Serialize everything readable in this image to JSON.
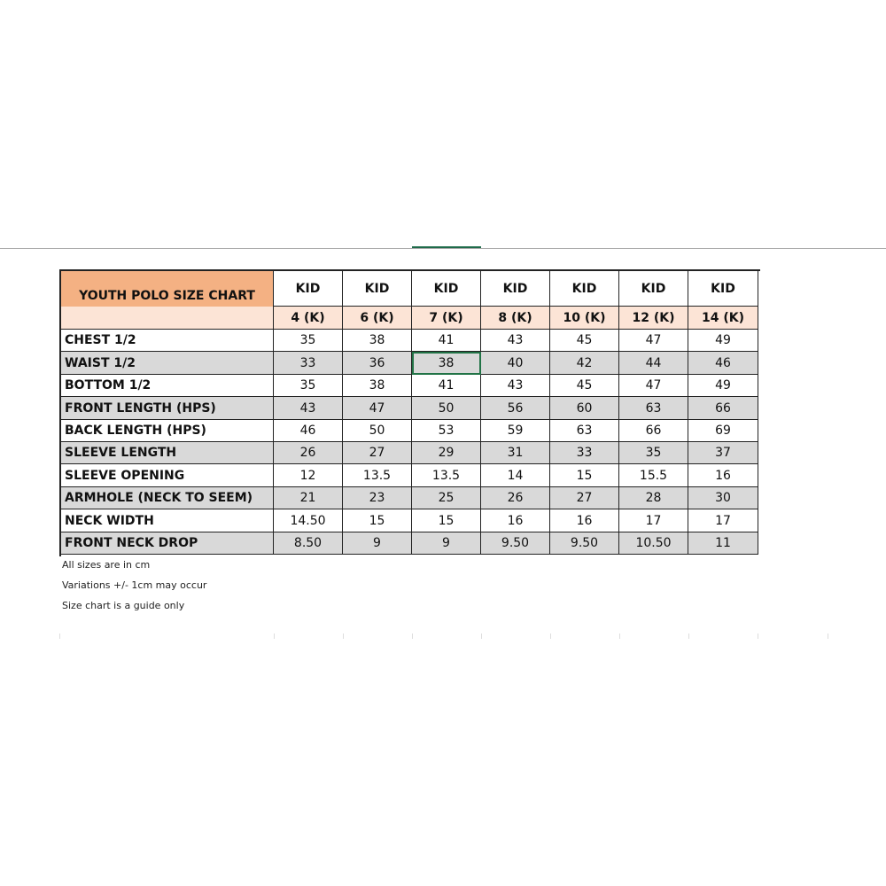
{
  "table": {
    "title": "YOUTH POLO SIZE CHART",
    "group_headers": [
      "KID",
      "KID",
      "KID",
      "KID",
      "KID",
      "KID",
      "KID"
    ],
    "sizes": [
      "4 (K)",
      "6 (K)",
      "7 (K)",
      "8 (K)",
      "10 (K)",
      "12 (K)",
      "14 (K)"
    ],
    "rows": [
      [
        "CHEST 1/2",
        "35",
        "38",
        "41",
        "43",
        "45",
        "47",
        "49"
      ],
      [
        "WAIST 1/2",
        "33",
        "36",
        "38",
        "40",
        "42",
        "44",
        "46"
      ],
      [
        "BOTTOM 1/2",
        "35",
        "38",
        "41",
        "43",
        "45",
        "47",
        "49"
      ],
      [
        "FRONT LENGTH (HPS)",
        "43",
        "47",
        "50",
        "56",
        "60",
        "63",
        "66"
      ],
      [
        "BACK LENGTH  (HPS)",
        "46",
        "50",
        "53",
        "59",
        "63",
        "66",
        "69"
      ],
      [
        "SLEEVE LENGTH",
        "26",
        "27",
        "29",
        "31",
        "33",
        "35",
        "37"
      ],
      [
        "SLEEVE OPENING",
        "12",
        "13.5",
        "13.5",
        "14",
        "15",
        "15.5",
        "16"
      ],
      [
        "ARMHOLE (NECK TO SEEM)",
        "21",
        "23",
        "25",
        "26",
        "27",
        "28",
        "30"
      ],
      [
        "NECK WIDTH",
        "14.50",
        "15",
        "15",
        "16",
        "16",
        "17",
        "17"
      ],
      [
        "FRONT NECK DROP",
        "8.50",
        "9",
        "9",
        "9.50",
        "9.50",
        "10.50",
        "11"
      ]
    ]
  },
  "notes": [
    "All sizes are in cm",
    "Variations +/- 1cm may occur",
    "Size chart is a guide only"
  ]
}
